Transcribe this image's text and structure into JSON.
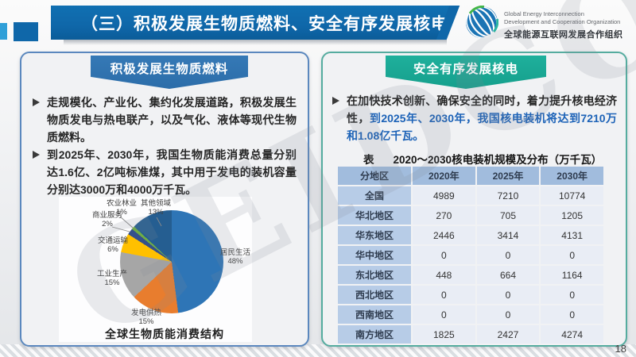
{
  "header": {
    "title": "（三）积极发展生物质燃料、安全有序发展核电",
    "logo": {
      "line1": "Global Energy Interconnection",
      "line2": "Development and Cooperation Organization",
      "line3": "全球能源互联网发展合作组织"
    }
  },
  "left_panel": {
    "banner": "积极发展生物质燃料",
    "bullet1": "走规模化、产业化、集约化发展道路，积极发展生物质发电与热电联产，以及气化、液体等现代生物质燃料。",
    "bullet2": "到2025年、2030年，我国生物质能消费总量分别达1.6亿、2亿吨标准煤，其中用于发电的装机容量分别达3000万和4000万千瓦。",
    "chart_title": "全球生物质能消费结构"
  },
  "right_panel": {
    "banner": "安全有序发展核电",
    "bullet_plain": "在加快技术创新、确保安全的同时，着力提升核电经济性，",
    "bullet_highlight": "到2025年、2030年，我国核电装机将达到7210万和1.08亿千瓦。",
    "table_caption_prefix": "表",
    "table_caption": "2020～2030核电装机规模及分布（万千瓦）",
    "table": {
      "columns": [
        "分地区",
        "2020年",
        "2025年",
        "2030年"
      ],
      "rows": [
        [
          "全国",
          "4989",
          "7210",
          "10774"
        ],
        [
          "华北地区",
          "270",
          "705",
          "1205"
        ],
        [
          "华东地区",
          "2446",
          "3414",
          "4131"
        ],
        [
          "华中地区",
          "0",
          "0",
          "0"
        ],
        [
          "东北地区",
          "448",
          "664",
          "1164"
        ],
        [
          "西北地区",
          "0",
          "0",
          "0"
        ],
        [
          "西南地区",
          "0",
          "0",
          "0"
        ],
        [
          "南方地区",
          "1825",
          "2427",
          "4274"
        ]
      ]
    }
  },
  "chart_data": {
    "type": "pie",
    "title": "全球生物质能消费结构",
    "unit": "%",
    "slices": [
      {
        "name": "居民生活",
        "value": 48,
        "label": "48%",
        "color": "#2E75B6"
      },
      {
        "name": "发电供热",
        "value": 15,
        "label": "15%",
        "color": "#E87D2E"
      },
      {
        "name": "工业生产",
        "value": 15,
        "label": "15%",
        "color": "#A6A6A6"
      },
      {
        "name": "交通运输",
        "value": 6,
        "label": "6%",
        "color": "#FFC000"
      },
      {
        "name": "商业服务",
        "value": 2,
        "label": "2%",
        "color": "#34508C"
      },
      {
        "name": "农业林业",
        "value": 1,
        "label": "1%",
        "color": "#6FAC46"
      },
      {
        "name": "其他领域",
        "value": 13,
        "label": "13%",
        "color": "#255E91"
      }
    ]
  },
  "watermark": "GEIDCO",
  "footer": {
    "page_number": "18"
  },
  "colors": {
    "header_blue": "#0F67A9",
    "accent_square": "#2F9FD8",
    "banner_left": "#2C6DA9",
    "banner_right": "#159F8C",
    "panel_border_left": "#5B88BE",
    "panel_border_right": "#55AC9F",
    "bullet_blue": "#1C62B7",
    "table_header_bg": "#A1BCDD",
    "table_rowhead_bg": "#B7CCE7",
    "table_cell_bg": "#E9EDF5"
  }
}
